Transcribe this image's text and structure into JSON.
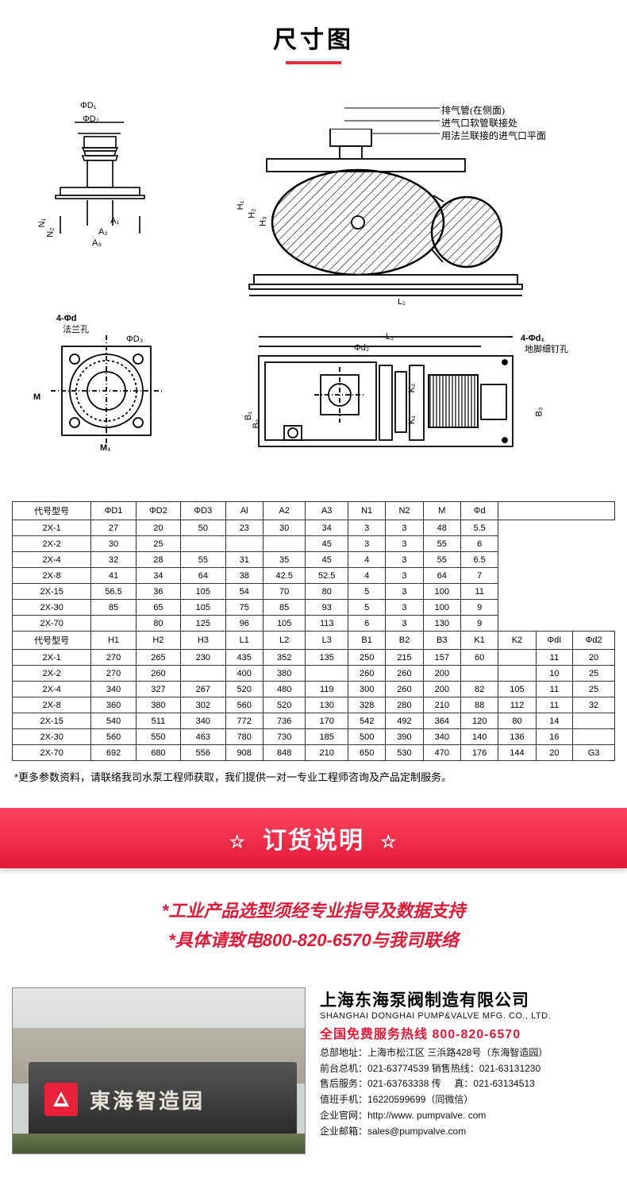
{
  "title": "尺寸图",
  "diagram": {
    "callouts": [
      "排气管(在侧面)",
      "进气口软管联接处",
      "用法兰联接的进气口平面"
    ],
    "labels": {
      "phi_d1": "ΦD₁",
      "phi_d2": "ΦD₂",
      "phi_d3": "ΦD₃",
      "a1": "A₁",
      "a2": "A₂",
      "a3": "A₃",
      "n1": "N₁",
      "n2": "N₂",
      "fourphid": "4-Φd",
      "falan": "法兰孔",
      "m": "M",
      "m1": "M₁",
      "h1": "H₁",
      "h2": "H₂",
      "h3": "H₃",
      "l1": "L₁",
      "l2": "L₂",
      "phid2a": "Φd₂",
      "fourphid1": "4-Φd₁",
      "dijiao": "地脚细钉孔",
      "b1": "B₁",
      "b2": "B₂",
      "b3": "B₃",
      "k1": "K₁",
      "k2": "K₂"
    }
  },
  "table1": {
    "headers": [
      "代号型号",
      "ΦD1",
      "ΦD2",
      "ΦD3",
      "Al",
      "A2",
      "A3",
      "N1",
      "N2",
      "M",
      "Φd"
    ],
    "rows": [
      [
        "2X-1",
        "27",
        "20",
        "50",
        "23",
        "30",
        "34",
        "3",
        "3",
        "48",
        "5.5"
      ],
      [
        "2X-2",
        "30",
        "25",
        "",
        "",
        "",
        "45",
        "3",
        "3",
        "55",
        "6"
      ],
      [
        "2X-4",
        "32",
        "28",
        "55",
        "31",
        "35",
        "45",
        "4",
        "3",
        "55",
        "6.5"
      ],
      [
        "2X-8",
        "41",
        "34",
        "64",
        "38",
        "42.5",
        "52.5",
        "4",
        "3",
        "64",
        "7"
      ],
      [
        "2X-15",
        "56.5",
        "36",
        "105",
        "54",
        "70",
        "80",
        "5",
        "3",
        "100",
        "11"
      ],
      [
        "2X-30",
        "85",
        "65",
        "105",
        "75",
        "85",
        "93",
        "5",
        "3",
        "100",
        "9"
      ],
      [
        "2X-70",
        "",
        "80",
        "125",
        "96",
        "105",
        "113",
        "6",
        "3",
        "130",
        "9"
      ]
    ]
  },
  "table2": {
    "headers": [
      "代号型号",
      "H1",
      "H2",
      "H3",
      "L1",
      "L2",
      "L3",
      "B1",
      "B2",
      "B3",
      "K1",
      "K2",
      "ΦdI",
      "Φd2"
    ],
    "rows": [
      [
        "2X-1",
        "270",
        "265",
        "230",
        "435",
        "352",
        "135",
        "250",
        "215",
        "157",
        "60",
        "",
        "11",
        "20"
      ],
      [
        "2X-2",
        "270",
        "260",
        "",
        "400",
        "380",
        "",
        "260",
        "260",
        "200",
        "",
        "",
        "10",
        "25"
      ],
      [
        "2X-4",
        "340",
        "327",
        "267",
        "520",
        "480",
        "119",
        "300",
        "260",
        "200",
        "82",
        "105",
        "11",
        "25"
      ],
      [
        "2X-8",
        "360",
        "380",
        "302",
        "560",
        "520",
        "130",
        "328",
        "280",
        "210",
        "88",
        "112",
        "11",
        "32"
      ],
      [
        "2X-15",
        "540",
        "511",
        "340",
        "772",
        "736",
        "170",
        "542",
        "492",
        "364",
        "120",
        "80",
        "14",
        ""
      ],
      [
        "2X-30",
        "560",
        "550",
        "463",
        "780",
        "730",
        "185",
        "500",
        "390",
        "340",
        "140",
        "136",
        "16",
        ""
      ],
      [
        "2X-70",
        "692",
        "680",
        "556",
        "908",
        "848",
        "210",
        "650",
        "530",
        "470",
        "176",
        "144",
        "20",
        "G3"
      ]
    ]
  },
  "noteText": "*更多参数资料，请联络我司水泵工程师获取，我们提供一对一专业工程师咨询及产品定制服务。",
  "bannerText": "订货说明",
  "orderNotes": [
    "*工业产品选型须经专业指导及数据支持",
    "*具体请致电800-820-6570与我司联络"
  ],
  "photo": {
    "wallText": "東海智造园"
  },
  "company": {
    "cn": "上海东海泵阀制造有限公司",
    "en": "SHANGHAI DONGHAI PUMP&VALVE  MFG. CO., LTD.",
    "hotline": "全国免费服务热线  800-820-6570",
    "lines": [
      "总部地址：上海市松江区 三浜路428号（东海智造园）",
      "前台总机：021-63774539   销售热线：021-63131230",
      "售后服务：021-63763338  传 &nbsp; &nbsp; 真：021-63134513",
      "值班手机：16220599699（同微信）",
      "企业官网：http://www. pumpvalve. com",
      "企业邮箱：sales@pumpvalve.com"
    ]
  },
  "colors": {
    "accent": "#e62b3a",
    "bannerTop": "#ff4560",
    "bannerBot": "#e01a37"
  }
}
